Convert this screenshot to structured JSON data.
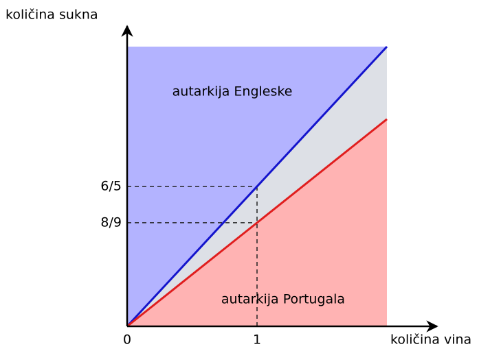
{
  "chart_data": {
    "type": "line",
    "x_label": "količina vina",
    "y_label": "količina sukna",
    "annotations": [
      "autarkija Engleske",
      "autarkija Portugala"
    ],
    "x": [
      0,
      2
    ],
    "series": [
      {
        "color": "#1414cc",
        "values": [
          0,
          2.4
        ]
      },
      {
        "color": "#e01e1e",
        "values": [
          0,
          1.7778
        ]
      }
    ],
    "region_colors": [
      "#b3b3ff",
      "#dde0e6",
      "#ffb3b3"
    ],
    "xlim": [
      0,
      2
    ],
    "ylim": [
      0,
      2.4
    ],
    "xticks": [
      0,
      1
    ],
    "yticks": [
      {
        "value": 0.8889,
        "label": "8/9"
      },
      {
        "value": 1.2,
        "label": "6/5"
      }
    ]
  }
}
